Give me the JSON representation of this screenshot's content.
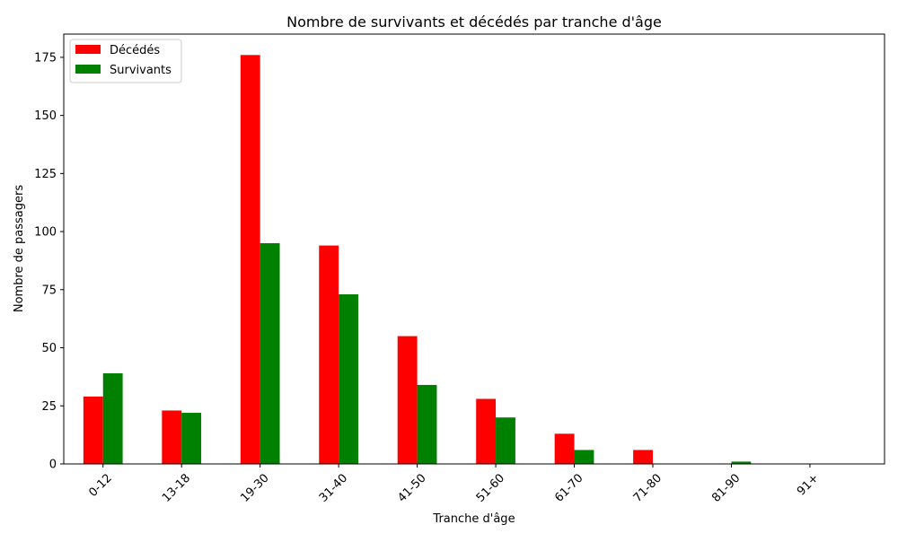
{
  "chart_data": {
    "type": "bar",
    "title": "Nombre de survivants et décédés par tranche d'âge",
    "xlabel": "Tranche d'âge",
    "ylabel": "Nombre de passagers",
    "categories": [
      "0-12",
      "13-18",
      "19-30",
      "31-40",
      "41-50",
      "51-60",
      "61-70",
      "71-80",
      "81-90",
      "91+"
    ],
    "series": [
      {
        "name": "Décédés",
        "color": "#ff0000",
        "values": [
          29,
          23,
          176,
          94,
          55,
          28,
          13,
          6,
          0,
          0
        ]
      },
      {
        "name": "Survivants",
        "color": "#008000",
        "values": [
          39,
          22,
          95,
          73,
          34,
          20,
          6,
          0,
          1,
          0
        ]
      }
    ],
    "ylim": [
      0,
      185
    ],
    "yticks": [
      0,
      25,
      50,
      75,
      100,
      125,
      150,
      175
    ],
    "grid": false,
    "legend": "top-left",
    "xtick_rotation": 45
  }
}
